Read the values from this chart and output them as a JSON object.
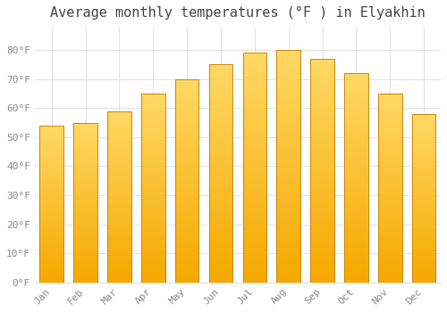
{
  "title": "Average monthly temperatures (°F ) in Elyakhin",
  "months": [
    "Jan",
    "Feb",
    "Mar",
    "Apr",
    "May",
    "Jun",
    "Jul",
    "Aug",
    "Sep",
    "Oct",
    "Nov",
    "Dec"
  ],
  "values": [
    54,
    55,
    59,
    65,
    70,
    75,
    79,
    80,
    77,
    72,
    65,
    58
  ],
  "bar_color_bottom": "#F5A800",
  "bar_color_top": "#FFD966",
  "bar_edge_color": "#C8860A",
  "background_color": "#FFFFFF",
  "grid_color": "#DDDDDD",
  "tick_color": "#888888",
  "title_color": "#444444",
  "ylim": [
    0,
    88
  ],
  "yticks": [
    0,
    10,
    20,
    30,
    40,
    50,
    60,
    70,
    80
  ],
  "ytick_labels": [
    "0°F",
    "10°F",
    "20°F",
    "30°F",
    "40°F",
    "50°F",
    "60°F",
    "70°F",
    "80°F"
  ],
  "title_fontsize": 11,
  "tick_fontsize": 8,
  "font_family": "monospace",
  "bar_width": 0.7,
  "figsize": [
    5.0,
    3.5
  ],
  "dpi": 100
}
